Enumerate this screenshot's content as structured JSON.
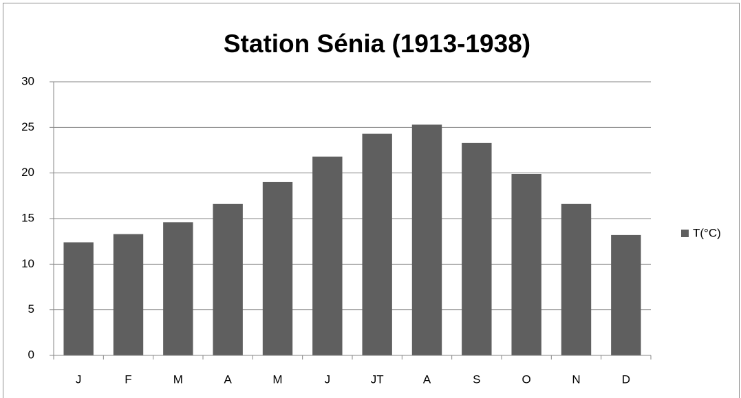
{
  "chart_data": {
    "type": "bar",
    "title": "Station Sénia (1913-1938)",
    "categories": [
      "J",
      "F",
      "M",
      "A",
      "M",
      "J",
      "JT",
      "A",
      "S",
      "O",
      "N",
      "D"
    ],
    "series": [
      {
        "name": "T(°C)",
        "color": "#5f5f5f",
        "values": [
          12.4,
          13.3,
          14.6,
          16.6,
          19.0,
          21.8,
          24.3,
          25.3,
          23.3,
          19.9,
          16.6,
          13.2
        ]
      }
    ],
    "ylim": [
      0,
      30
    ],
    "yticks": [
      0,
      5,
      10,
      15,
      20,
      25,
      30
    ],
    "grid": true,
    "legend": "right"
  }
}
